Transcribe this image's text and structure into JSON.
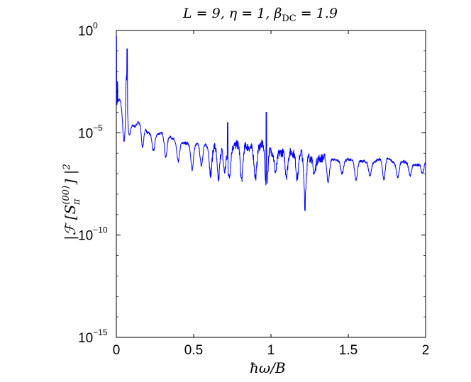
{
  "chart_data": {
    "type": "line",
    "title": "L = 9, η = 1, β_DC = 1.9",
    "xlabel": "ħω/B",
    "ylabel": "|ℱ[S_π^(00)]|²",
    "xlim": [
      0,
      2
    ],
    "ylim": [
      1e-15,
      1
    ],
    "yscale": "log",
    "grid": false,
    "x_ticks": [
      "0",
      "0.5",
      "1",
      "1.5",
      "2"
    ],
    "y_ticks": [
      {
        "base": "10",
        "exp": "0"
      },
      {
        "base": "10",
        "exp": "−5"
      },
      {
        "base": "10",
        "exp": "−10"
      },
      {
        "base": "10",
        "exp": "−15"
      }
    ],
    "series": [
      {
        "color": "#0000ff",
        "log10_y_envelope": {
          "x": [
            0,
            0.002,
            0.005,
            0.01,
            0.02,
            0.03,
            0.04,
            0.05,
            0.058,
            0.062,
            0.066,
            0.07,
            0.075,
            0.08,
            0.09,
            0.1,
            0.12,
            0.14,
            0.16,
            0.18,
            0.2,
            0.25,
            0.3,
            0.35,
            0.4,
            0.45,
            0.5,
            0.55,
            0.6,
            0.65,
            0.7,
            0.75,
            0.8,
            0.85,
            0.9,
            0.95,
            1.0,
            1.05,
            1.1,
            1.15,
            1.2,
            1.25,
            1.3,
            1.35,
            1.4,
            1.45,
            1.5,
            1.55,
            1.6,
            1.65,
            1.7,
            1.75,
            1.8,
            1.85,
            1.9,
            1.95,
            2.0
          ],
          "y": [
            -2.8,
            -0.4,
            -2.7,
            -3.2,
            -3.3,
            -3.5,
            -3.7,
            -4.2,
            -3.0,
            -1.0,
            -1.2,
            -2.5,
            -3.8,
            -4.3,
            -4.5,
            -4.6,
            -4.7,
            -4.5,
            -4.4,
            -4.6,
            -5.0,
            -5.1,
            -5.0,
            -5.2,
            -5.5,
            -5.5,
            -5.6,
            -5.5,
            -5.7,
            -5.6,
            -5.8,
            -5.7,
            -5.5,
            -5.7,
            -5.8,
            -5.5,
            -5.9,
            -6.0,
            -5.9,
            -6.0,
            -5.9,
            -6.2,
            -6.3,
            -6.2,
            -6.3,
            -6.4,
            -6.3,
            -6.4,
            -6.4,
            -6.5,
            -6.3,
            -6.2,
            -6.5,
            -6.4,
            -6.5,
            -6.6,
            -6.4
          ]
        },
        "log10_y_minima": {
          "x": [
            0.005,
            0.05,
            0.085,
            0.17,
            0.24,
            0.32,
            0.4,
            0.49,
            0.55,
            0.61,
            0.66,
            0.7,
            0.73,
            0.81,
            0.9,
            0.97,
            1.03,
            1.1,
            1.17,
            1.22,
            1.28,
            1.37,
            1.46,
            1.55,
            1.64,
            1.73,
            1.82,
            1.9,
            1.98
          ],
          "y": [
            -3.6,
            -5.4,
            -5.1,
            -5.7,
            -5.9,
            -6.2,
            -6.4,
            -6.8,
            -6.6,
            -7.0,
            -7.3,
            -6.9,
            -7.2,
            -7.3,
            -7.2,
            -7.6,
            -6.9,
            -7.1,
            -7.2,
            -8.0,
            -7.0,
            -7.4,
            -7.0,
            -7.3,
            -7.1,
            -7.3,
            -7.2,
            -7.1,
            -7.0
          ]
        },
        "sharp_peaks": {
          "x": [
            0.0,
            0.0075,
            0.07,
            0.72,
            0.97,
            0.98,
            1.22
          ],
          "log10_y": [
            -0.3,
            -2.5,
            -0.9,
            -4.5,
            -4.0,
            -6.9,
            -8.8
          ]
        }
      }
    ]
  }
}
